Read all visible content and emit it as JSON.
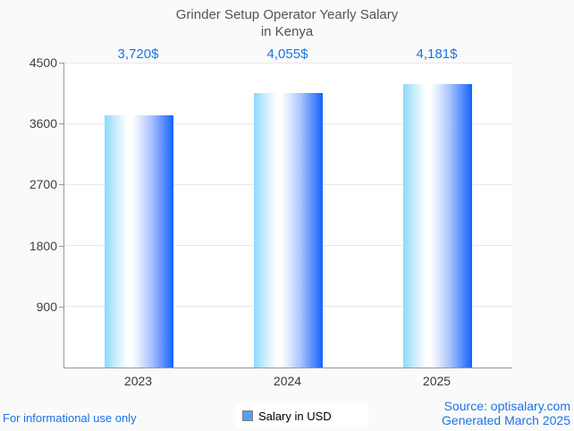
{
  "title": {
    "line1": "Grinder Setup Operator Yearly Salary",
    "line2": "in Kenya"
  },
  "legend": {
    "label": "Salary in USD"
  },
  "footer": {
    "left_note": "For informational use only",
    "source": "Source: optisalary.com",
    "generated": "Generated March 2025"
  },
  "colors": {
    "accent_blue": "#1a73e8",
    "title_color": "#545454",
    "tick_label_color": "#404040",
    "axis_line": "#999999",
    "gridline": "#e8e8e8",
    "page_background": "#fafafa",
    "plot_background": "#ffffff",
    "bar_gradient_left": "#8cd9fc",
    "bar_gradient_right": "#1164fc",
    "legend_marker_fill": "#57a0ee",
    "legend_marker_border": "#7f7f7f"
  },
  "chart_data": {
    "type": "bar",
    "title": "Grinder Setup Operator Yearly Salary in Kenya",
    "categories": [
      "2023",
      "2024",
      "2025"
    ],
    "series": [
      {
        "name": "Salary in USD",
        "values": [
          3720,
          4055,
          4181
        ]
      }
    ],
    "value_labels": [
      "3,720$",
      "4,055$",
      "4,181$"
    ],
    "xlabel": "",
    "ylabel": "",
    "yticks": [
      900,
      1800,
      2700,
      3600,
      4500
    ],
    "ylim": [
      0,
      4500
    ],
    "grid": true,
    "legend_position": "bottom-center"
  }
}
